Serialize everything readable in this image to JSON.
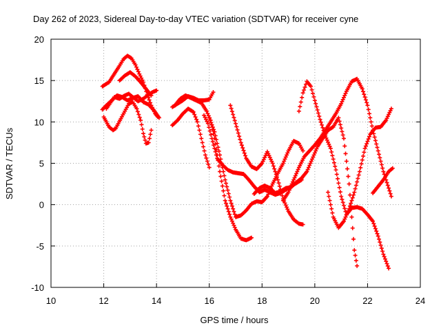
{
  "chart_data": {
    "type": "scatter",
    "title": "Day 262 of 2023, Sidereal Day-to-day VTEC variation (SDTVAR) for receiver cyne",
    "xlabel": "GPS time / hours",
    "ylabel": "SDTVAR / TECUs",
    "xlim": [
      10,
      24
    ],
    "ylim": [
      -10,
      20
    ],
    "xticks": [
      10,
      12,
      14,
      16,
      18,
      20,
      22,
      24
    ],
    "yticks": [
      -10,
      -5,
      0,
      5,
      10,
      15,
      20
    ],
    "grid": true,
    "marker": "+",
    "color": "#ff0000",
    "series": [
      {
        "x": [
          11.95,
          12.1,
          12.3,
          12.5,
          12.7,
          12.9,
          13.1,
          13.3,
          13.5,
          13.7,
          13.9,
          14.1
        ],
        "y": [
          11.5,
          12.0,
          12.6,
          13.2,
          13.0,
          12.6,
          12.9,
          13.1,
          12.4,
          12.1,
          11.4,
          10.5
        ]
      },
      {
        "x": [
          12.1,
          12.25,
          12.4,
          12.6,
          12.8,
          12.95,
          13.1,
          13.3,
          13.5,
          13.7,
          13.85,
          14.0
        ],
        "y": [
          11.6,
          12.3,
          13.0,
          12.8,
          13.2,
          13.4,
          13.0,
          12.5,
          12.8,
          13.3,
          13.6,
          13.8
        ]
      },
      {
        "x": [
          11.95,
          12.0,
          12.1,
          12.2,
          12.35,
          12.45,
          12.55,
          12.65,
          12.8,
          12.95,
          13.1,
          13.25,
          13.4,
          13.5,
          13.6,
          13.7,
          13.8
        ],
        "y": [
          11.5,
          10.6,
          10.0,
          9.4,
          9.0,
          9.2,
          9.8,
          10.4,
          11.3,
          12.2,
          12.4,
          11.6,
          10.2,
          8.6,
          7.4,
          7.5,
          9.0
        ]
      },
      {
        "x": [
          11.95,
          12.2,
          12.4,
          12.6,
          12.75,
          12.9,
          13.05,
          13.2,
          13.35,
          13.5,
          13.65,
          13.8,
          13.95,
          14.05
        ],
        "y": [
          14.3,
          14.8,
          15.8,
          16.8,
          17.6,
          18.0,
          17.7,
          16.9,
          15.8,
          14.8,
          13.3,
          12.0,
          11.0,
          10.6
        ]
      },
      {
        "x": [
          12.6,
          12.8,
          13.0,
          13.2,
          13.4,
          13.6,
          13.8
        ],
        "y": [
          15.0,
          15.6,
          16.0,
          15.5,
          14.8,
          14.0,
          13.2
        ]
      },
      {
        "x": [
          14.6,
          14.8,
          15.0,
          15.2,
          15.4,
          15.6,
          15.8,
          16.0,
          16.15
        ],
        "y": [
          11.8,
          12.2,
          12.6,
          13.1,
          12.9,
          12.6,
          12.6,
          12.7,
          13.6
        ]
      },
      {
        "x": [
          14.6,
          14.8,
          15.0,
          15.2,
          15.4,
          15.55,
          15.7,
          15.85,
          16.0
        ],
        "y": [
          9.6,
          10.2,
          11.0,
          11.6,
          11.2,
          10.0,
          8.0,
          6.0,
          4.5
        ]
      },
      {
        "x": [
          14.7,
          14.9,
          15.1,
          15.3,
          15.5,
          15.7,
          15.9,
          16.05,
          16.2,
          16.4,
          16.6,
          16.8,
          17.0,
          17.2,
          17.4,
          17.6
        ],
        "y": [
          12.0,
          12.8,
          13.2,
          12.9,
          12.6,
          12.3,
          11.3,
          10.2,
          8.0,
          4.0,
          0.5,
          -1.5,
          -3.0,
          -4.1,
          -4.3,
          -4.0
        ]
      },
      {
        "x": [
          15.8,
          15.95,
          16.1,
          16.3,
          16.5,
          16.7,
          16.9,
          17.1,
          17.3,
          17.5,
          17.7,
          17.9,
          18.1,
          18.3,
          18.5,
          18.7,
          18.9,
          19.1,
          19.3,
          19.5
        ],
        "y": [
          10.8,
          9.8,
          8.0,
          5.6,
          4.8,
          4.2,
          3.9,
          3.8,
          3.7,
          3.0,
          2.2,
          1.5,
          1.8,
          1.5,
          1.2,
          1.4,
          1.8,
          2.2,
          2.6,
          3.0
        ]
      },
      {
        "x": [
          16.0,
          16.2,
          16.4,
          16.6,
          16.8,
          17.0,
          17.2,
          17.4,
          17.6,
          17.8,
          18.0,
          18.2,
          18.4,
          18.6,
          18.8,
          19.0,
          19.2,
          19.4,
          19.55
        ],
        "y": [
          10.5,
          8.8,
          6.0,
          3.0,
          0.5,
          -1.5,
          -1.3,
          -0.7,
          0.1,
          0.4,
          0.3,
          1.0,
          2.5,
          3.8,
          5.0,
          6.5,
          7.7,
          7.4,
          6.5
        ]
      },
      {
        "x": [
          16.8,
          17.0,
          17.2,
          17.4,
          17.6,
          17.8,
          18.0,
          18.2,
          18.4,
          18.6,
          18.8,
          19.0,
          19.2,
          19.4,
          19.55
        ],
        "y": [
          12.0,
          9.8,
          7.5,
          5.6,
          4.6,
          4.3,
          5.0,
          6.4,
          5.0,
          3.0,
          0.7,
          -0.8,
          -1.8,
          -2.3,
          -2.4
        ]
      },
      {
        "x": [
          17.7,
          17.9,
          18.1,
          18.3,
          18.5,
          18.7,
          18.9,
          19.1,
          19.3,
          19.5,
          19.7,
          19.9,
          20.1,
          20.3,
          20.5,
          20.7,
          20.9,
          21.1,
          21.3,
          21.5,
          21.6
        ],
        "y": [
          1.3,
          2.0,
          2.3,
          2.0,
          1.4,
          1.6,
          2.0,
          2.1,
          2.7,
          3.2,
          4.0,
          5.5,
          7.0,
          8.0,
          9.0,
          9.4,
          10.5,
          8.0,
          2.5,
          -5.5,
          -7.4
        ]
      },
      {
        "x": [
          19.4,
          19.55,
          19.7,
          19.85,
          20.0,
          20.2,
          20.4,
          20.6,
          20.8,
          21.0,
          21.2,
          21.4,
          21.6,
          21.8,
          22.0,
          22.2,
          22.4,
          22.6,
          22.8
        ],
        "y": [
          11.3,
          13.5,
          14.9,
          14.3,
          12.6,
          10.3,
          8.3,
          6.8,
          4.2,
          1.0,
          -1.2,
          -0.4,
          -0.3,
          -0.5,
          -1.2,
          -2.0,
          -3.8,
          -6.0,
          -7.7
        ]
      },
      {
        "x": [
          18.8,
          19.0,
          19.2,
          19.4,
          19.6,
          19.8,
          20.0,
          20.2,
          20.4,
          20.6,
          20.8,
          21.0,
          21.2,
          21.4,
          21.6,
          21.8,
          22.0,
          22.2,
          22.4,
          22.6,
          22.8,
          22.9
        ],
        "y": [
          0.5,
          1.5,
          3.0,
          4.5,
          5.8,
          6.5,
          7.2,
          8.0,
          9.0,
          10.0,
          11.0,
          12.2,
          13.7,
          14.9,
          15.2,
          14.0,
          12.0,
          9.0,
          6.5,
          4.0,
          2.0,
          1.0
        ]
      },
      {
        "x": [
          20.5,
          20.7,
          20.9,
          21.1,
          21.3,
          21.5,
          21.7,
          21.9,
          22.1,
          22.3,
          22.5,
          22.7,
          22.9
        ],
        "y": [
          1.5,
          -1.5,
          -2.8,
          -2.0,
          -0.5,
          1.5,
          4.0,
          6.8,
          8.5,
          9.3,
          9.4,
          10.2,
          11.6
        ]
      },
      {
        "x": [
          22.2,
          22.4,
          22.6,
          22.8,
          22.95
        ],
        "y": [
          1.4,
          2.2,
          3.0,
          4.0,
          4.4
        ]
      }
    ]
  }
}
